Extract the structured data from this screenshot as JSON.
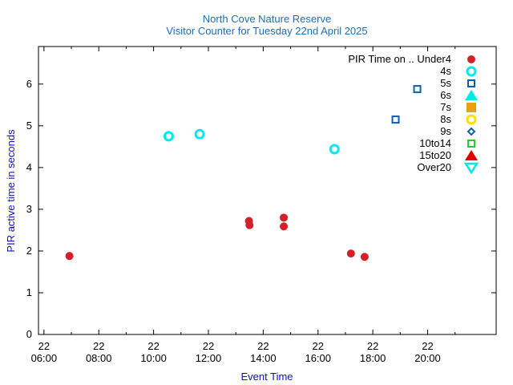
{
  "chart_data": {
    "type": "scatter",
    "title": "North Cove Nature Reserve",
    "subtitle": "Visitor Counter for Tuesday 22nd April 2025",
    "xlabel": "Event Time",
    "ylabel": "PIR active time in seconds",
    "xlim": [
      5.8,
      22.5
    ],
    "ylim": [
      0,
      6.9
    ],
    "x_ticks": [
      {
        "x": 6,
        "day": "22",
        "time": "06:00"
      },
      {
        "x": 8,
        "day": "22",
        "time": "08:00"
      },
      {
        "x": 10,
        "day": "22",
        "time": "10:00"
      },
      {
        "x": 12,
        "day": "22",
        "time": "12:00"
      },
      {
        "x": 14,
        "day": "22",
        "time": "14:00"
      },
      {
        "x": 16,
        "day": "22",
        "time": "16:00"
      },
      {
        "x": 18,
        "day": "22",
        "time": "18:00"
      },
      {
        "x": 20,
        "day": "22",
        "time": "20:00"
      }
    ],
    "y_ticks": [
      0,
      1,
      2,
      3,
      4,
      5,
      6
    ],
    "grid": false,
    "legend_position": "top-right",
    "legend_title": "PIR Time on ..",
    "series": [
      {
        "name": "Under4",
        "marker": "filled-circle",
        "color": "#d42028",
        "points": [
          [
            6.93,
            1.88
          ],
          [
            13.48,
            2.72
          ],
          [
            13.5,
            2.62
          ],
          [
            14.75,
            2.8
          ],
          [
            14.75,
            2.59
          ],
          [
            17.2,
            1.94
          ],
          [
            17.7,
            1.86
          ]
        ]
      },
      {
        "name": "4s",
        "marker": "open-circle",
        "color": "#00e8e8",
        "points": [
          [
            10.55,
            4.75
          ],
          [
            11.68,
            4.8
          ],
          [
            16.6,
            4.44
          ]
        ]
      },
      {
        "name": "5s",
        "marker": "open-square",
        "color": "#1060a8",
        "points": [
          [
            19.62,
            5.88
          ],
          [
            18.83,
            5.15
          ]
        ]
      },
      {
        "name": "6s",
        "marker": "filled-triangle-up",
        "color": "#00e8e8",
        "points": []
      },
      {
        "name": "7s",
        "marker": "filled-square",
        "color": "#e8a010",
        "points": []
      },
      {
        "name": "8s",
        "marker": "open-circle",
        "color": "#ffe000",
        "points": []
      },
      {
        "name": "9s",
        "marker": "open-diamond",
        "color": "#1060a8",
        "points": []
      },
      {
        "name": "10to14",
        "marker": "open-square",
        "color": "#20d020",
        "points": []
      },
      {
        "name": "15to20",
        "marker": "filled-triangle-up",
        "color": "#e00000",
        "points": []
      },
      {
        "name": "Over20",
        "marker": "open-triangle-down",
        "color": "#00e8e8",
        "points": []
      }
    ]
  }
}
